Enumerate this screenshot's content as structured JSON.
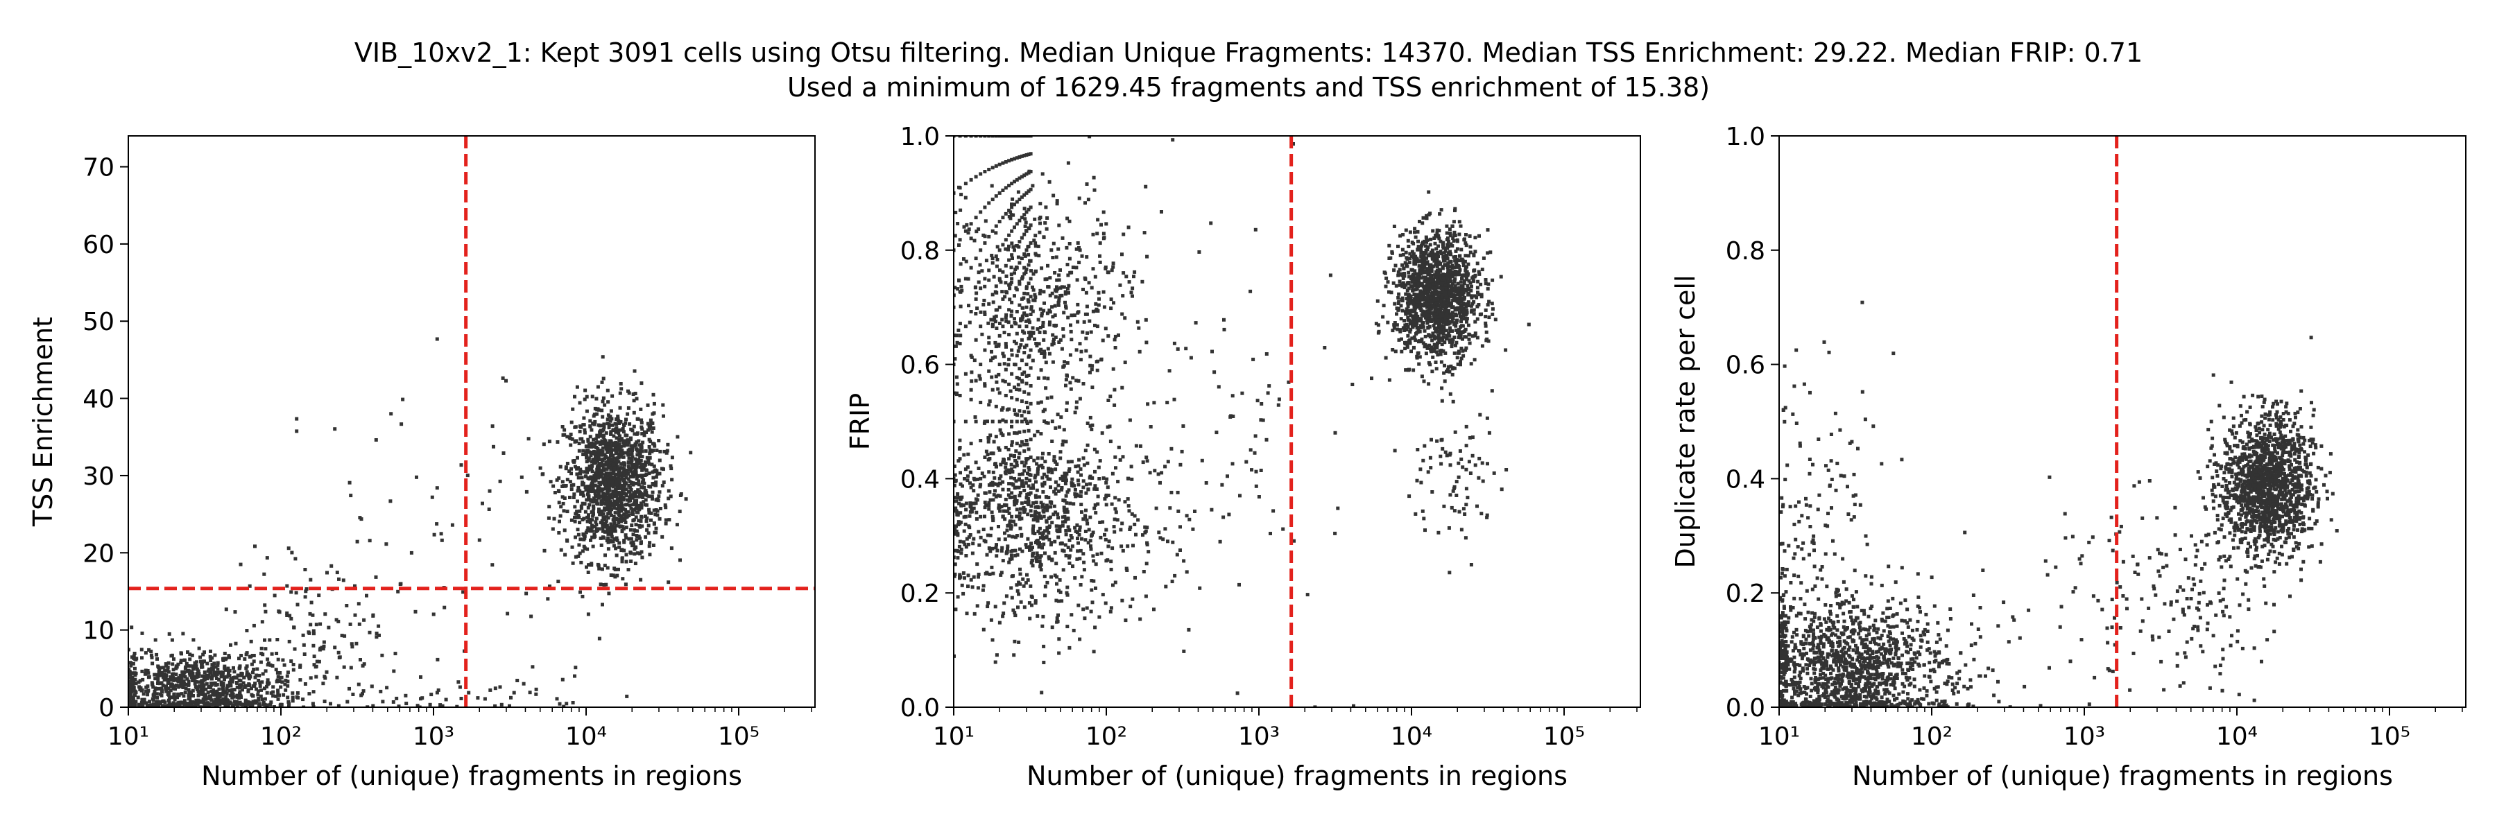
{
  "title": {
    "line1": "VIB_10xv2_1: Kept 3091 cells using Otsu filtering. Median Unique Fragments: 14370. Median TSS Enrichment: 29.22. Median FRIP: 0.71",
    "line2": "Used a minimum of 1629.45 fragments and TSS enrichment of 15.38)"
  },
  "colors": {
    "points": "#333333",
    "threshold": "#e3211c",
    "axis": "#000000"
  },
  "chart_data": [
    {
      "type": "scatter",
      "xlabel": "Number of (unique) fragments in regions",
      "ylabel": "TSS Enrichment",
      "xscale": "log",
      "xlim": [
        10,
        316228
      ],
      "ylim": [
        0,
        74
      ],
      "xticks": [
        10,
        100,
        1000,
        10000,
        100000
      ],
      "yticks": [
        0,
        10,
        20,
        30,
        40,
        50,
        60,
        70
      ],
      "threshold_x": 1629.45,
      "threshold_y": 15.38,
      "clusters": [
        {
          "n": 1400,
          "x_log_center": 4.18,
          "x_log_sd": 0.16,
          "y_center": 29,
          "y_sd": 5.0
        },
        {
          "n": 900,
          "x_log_center": 1.45,
          "x_log_sd": 0.32,
          "y_center": 2.5,
          "y_sd": 2.5
        },
        {
          "n": 120,
          "x_log_center": 2.2,
          "x_log_sd": 0.25,
          "y_center": 9,
          "y_sd": 5
        },
        {
          "n": 60,
          "x_log_center": 3.0,
          "x_log_sd": 0.45,
          "y_center": 22,
          "y_sd": 11
        },
        {
          "n": 60,
          "x_log_center": 3.2,
          "x_log_sd": 0.5,
          "y_center": 1.5,
          "y_sd": 1.5
        }
      ]
    },
    {
      "type": "scatter",
      "xlabel": "Number of (unique) fragments in regions",
      "ylabel": "FRIP",
      "xscale": "log",
      "xlim": [
        10,
        316228
      ],
      "ylim": [
        0,
        1
      ],
      "xticks": [
        10,
        100,
        1000,
        10000,
        100000
      ],
      "yticks": [
        0.0,
        0.2,
        0.4,
        0.6,
        0.8,
        1.0
      ],
      "threshold_x": 1629.45,
      "clusters": [
        {
          "n": 1400,
          "x_log_center": 4.17,
          "x_log_sd": 0.14,
          "y_center": 0.72,
          "y_sd": 0.055
        },
        {
          "n": 900,
          "x_log_center": 1.55,
          "x_log_sd": 0.35,
          "y_center": 0.33,
          "y_sd": 0.09
        },
        {
          "n": 500,
          "x_log_center": 1.55,
          "x_log_sd": 0.3,
          "y_center": 0.72,
          "y_sd": 0.1
        },
        {
          "n": 120,
          "x_log_center": 2.6,
          "x_log_sd": 0.5,
          "y_center": 0.45,
          "y_sd": 0.2
        },
        {
          "n": 80,
          "x_log_center": 4.3,
          "x_log_sd": 0.15,
          "y_center": 0.4,
          "y_sd": 0.06
        }
      ],
      "discrete_arcs": {
        "n_min": 10,
        "n_max": 32,
        "top_y": 1.0
      }
    },
    {
      "type": "scatter",
      "xlabel": "Number of (unique) fragments in regions",
      "ylabel": "Duplicate rate per cell",
      "xscale": "log",
      "xlim": [
        10,
        316228
      ],
      "ylim": [
        0,
        1
      ],
      "xticks": [
        10,
        100,
        1000,
        10000,
        100000
      ],
      "yticks": [
        0.0,
        0.2,
        0.4,
        0.6,
        0.8,
        1.0
      ],
      "threshold_x": 1629.45,
      "clusters": [
        {
          "n": 1400,
          "x_log_center": 4.2,
          "x_log_sd": 0.15,
          "y_center": 0.39,
          "y_sd": 0.06
        },
        {
          "n": 1300,
          "x_log_center": 1.45,
          "x_log_sd": 0.35,
          "y_center": 0.07,
          "y_sd": 0.06
        },
        {
          "n": 150,
          "x_log_center": 1.25,
          "x_log_sd": 0.2,
          "y_center": 0.3,
          "y_sd": 0.15
        },
        {
          "n": 100,
          "x_log_center": 3.2,
          "x_log_sd": 0.4,
          "y_center": 0.2,
          "y_sd": 0.1
        },
        {
          "n": 100,
          "x_log_center": 3.8,
          "x_log_sd": 0.2,
          "y_center": 0.17,
          "y_sd": 0.07
        }
      ]
    }
  ]
}
